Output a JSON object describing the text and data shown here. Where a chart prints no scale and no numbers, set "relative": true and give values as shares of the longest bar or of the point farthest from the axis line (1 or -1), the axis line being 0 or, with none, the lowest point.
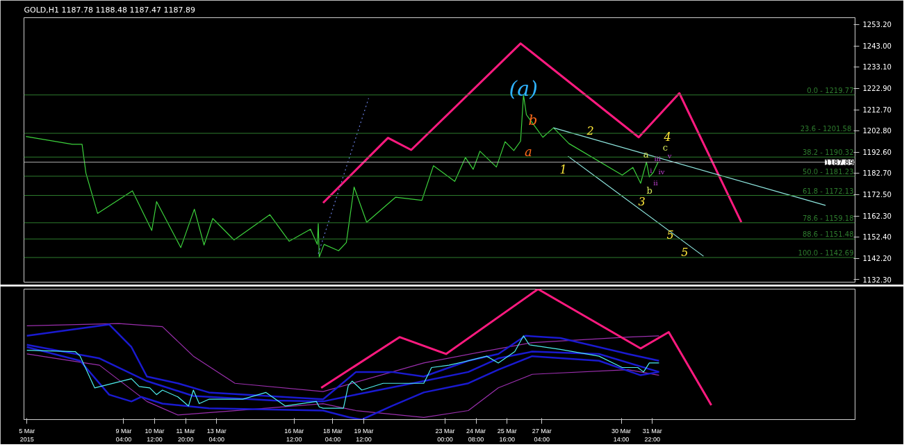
{
  "chart_data": [
    {
      "type": "line",
      "title": "GOLD,H1  1187.78 1188.48 1187.47 1187.89",
      "xlim": [
        "2015-03-04T21:00",
        "2015-04-09T15:30"
      ],
      "ylim": [
        1131.0,
        1256.4
      ],
      "yticks": [
        {
          "value": 1253.2,
          "label": "1253.20"
        },
        {
          "value": 1243.0,
          "label": "1243.00"
        },
        {
          "value": 1233.1,
          "label": "1233.10"
        },
        {
          "value": 1222.9,
          "label": "1222.90"
        },
        {
          "value": 1212.7,
          "label": "1212.70"
        },
        {
          "value": 1202.8,
          "label": "1202.80"
        },
        {
          "value": 1192.6,
          "label": "1192.60"
        },
        {
          "value": 1182.7,
          "label": "1182.70"
        },
        {
          "value": 1172.5,
          "label": "1172.50"
        },
        {
          "value": 1162.3,
          "label": "1162.30"
        },
        {
          "value": 1152.4,
          "label": "1152.40"
        },
        {
          "value": 1142.2,
          "label": "1142.20"
        },
        {
          "value": 1132.3,
          "label": "1132.30"
        }
      ],
      "tick_labels": "y",
      "grid": false,
      "series": [
        {
          "color": "#3cd23c",
          "x": [
            "2015-03-04T23:00",
            "2015-03-06T23:00",
            "2015-03-07T09:00",
            "2015-03-07T13:00",
            "2015-03-08T01:00",
            "2015-03-09T13:00",
            "2015-03-10T09:00",
            "2015-03-10T14:00",
            "2015-03-11T15:00",
            "2015-03-12T05:00",
            "2015-03-12T15:00",
            "2015-03-13T00:00",
            "2015-03-13T22:00",
            "2015-03-15T11:00",
            "2015-03-16T07:00",
            "2015-03-17T05:00",
            "2015-03-17T12:00",
            "2015-03-17T13:00",
            "2015-03-17T14:00",
            "2015-03-17T19:00",
            "2015-03-18T10:00",
            "2015-03-18T18:00",
            "2015-03-19T02:00",
            "2015-03-19T15:00",
            "2015-03-20T21:00",
            "2015-03-22T00:00",
            "2015-03-22T12:00",
            "2015-03-23T10:00",
            "2015-03-23T21:00",
            "2015-03-24T05:00",
            "2015-03-24T12:00",
            "2015-03-25T05:00",
            "2015-03-25T14:00",
            "2015-03-25T23:00",
            "2015-03-26T06:00",
            "2015-03-26T09:00",
            "2015-03-26T12:00",
            "2015-03-27T05:00",
            "2015-03-27T16:00",
            "2015-03-28T08:00",
            "2015-03-30T15:00",
            "2015-03-31T02:00",
            "2015-03-31T10:00",
            "2015-03-31T16:00",
            "2015-03-31T19:00",
            "2015-03-31T23:00",
            "2015-04-01T04:00"
          ],
          "values": [
            1200.1,
            1196.4,
            1196.4,
            1182.7,
            1163.6,
            1174.3,
            1155.5,
            1169.2,
            1147.4,
            1165.6,
            1148.6,
            1161.2,
            1151.0,
            1163.0,
            1150.4,
            1156.1,
            1148.9,
            1158.8,
            1142.9,
            1148.9,
            1145.9,
            1149.8,
            1176.1,
            1159.4,
            1171.3,
            1169.8,
            1186.2,
            1178.8,
            1190.1,
            1184.5,
            1193.1,
            1185.6,
            1197.6,
            1193.4,
            1197.9,
            1219.8,
            1210.4,
            1199.7,
            1204.2,
            1196.7,
            1181.8,
            1185.4,
            1177.9,
            1188.0,
            1180.9,
            1183.0,
            1187.9
          ]
        },
        {
          "color": "#ff1a7f",
          "x": [
            "2015-03-17T18:00",
            "2015-03-20T13:00",
            "2015-03-21T13:00",
            "2015-03-26T06:00",
            "2015-03-31T08:00",
            "2015-04-02T02:00",
            "2015-04-04T18:00"
          ],
          "values": [
            1168.6,
            1199.4,
            1193.7,
            1244.2,
            1199.7,
            1220.6,
            1159.4
          ]
        },
        {
          "color": "#8fe8e0",
          "x": [
            "2015-03-27T16:00",
            "2015-04-08T09:00"
          ],
          "values": [
            1204.2,
            1167.4
          ]
        },
        {
          "color": "#8fe8e0",
          "x": [
            "2015-03-28T07:00",
            "2015-04-03T03:00"
          ],
          "values": [
            1190.7,
            1143.3
          ]
        },
        {
          "color": "#6a7fe0",
          "line_style": "dotted",
          "x": [
            "2015-03-17T13:00",
            "2015-03-19T17:00"
          ],
          "values": [
            1144.5,
            1218.2
          ]
        }
      ],
      "ref_lines": [
        {
          "axis": "y",
          "value": 1219.77,
          "color": "#2e7d2e"
        },
        {
          "axis": "y",
          "value": 1201.58,
          "color": "#2e7d2e"
        },
        {
          "axis": "y",
          "value": 1190.32,
          "color": "#2e7d2e"
        },
        {
          "axis": "y",
          "value": 1181.23,
          "color": "#2e7d2e"
        },
        {
          "axis": "y",
          "value": 1172.13,
          "color": "#2e7d2e"
        },
        {
          "axis": "y",
          "value": 1159.18,
          "color": "#2e7d2e"
        },
        {
          "axis": "y",
          "value": 1151.48,
          "color": "#2e7d2e"
        },
        {
          "axis": "y",
          "value": 1142.69,
          "color": "#2e7d2e"
        },
        {
          "axis": "y",
          "value": 1187.89,
          "label": "1187.89",
          "color": "#b0b0b0"
        }
      ],
      "annotations": [
        "(a)",
        "a",
        "b",
        "1",
        "2",
        "3",
        "4",
        "5",
        "5",
        "a",
        "b",
        "c",
        "i",
        "ii",
        "iii",
        "iv",
        "v",
        {
          "text": "0.0 - 1219.77",
          "x": "2015-04-09T15:30",
          "y": 1219.77
        },
        {
          "text": "23.6  - 1201.58",
          "x": "2015-04-09T15:30",
          "y": 1201.58
        },
        {
          "text": "38.2 - 1190.32",
          "x": "2015-04-09T15:30",
          "y": 1190.32
        },
        {
          "text": "50.0 - 1181.23",
          "x": "2015-04-09T15:30",
          "y": 1181.23
        },
        {
          "text": "61.8 - 1172.13",
          "x": "2015-04-09T15:30",
          "y": 1172.13
        },
        {
          "text": "78.6 - 1159.18",
          "x": "2015-04-09T15:30",
          "y": 1159.18
        },
        {
          "text": "88.6 - 1151.48",
          "x": "2015-04-09T15:30",
          "y": 1151.48
        },
        {
          "text": "100.0 - 1142.69",
          "x": "2015-04-09T15:30",
          "y": 1142.69
        }
      ]
    },
    {
      "type": "line",
      "relative": true,
      "xlim": [
        "2015-03-04T21:00",
        "2015-04-09T15:30"
      ],
      "tick_labels": "x",
      "grid": false,
      "xticks": [
        {
          "value": "2015-03-05T00:00",
          "label": "5 Mar 2015"
        },
        {
          "value": "2015-03-09T04:00",
          "label": "9 Mar 04:00"
        },
        {
          "value": "2015-03-10T12:00",
          "label": "10 Mar 12:00"
        },
        {
          "value": "2015-03-11T20:00",
          "label": "11 Mar 20:00"
        },
        {
          "value": "2015-03-13T04:00",
          "label": "13 Mar 04:00"
        },
        {
          "value": "2015-03-16T12:00",
          "label": "16 Mar 12:00"
        },
        {
          "value": "2015-03-18T04:00",
          "label": "18 Mar 04:00"
        },
        {
          "value": "2015-03-19T12:00",
          "label": "19 Mar 12:00"
        },
        {
          "value": "2015-03-23T00:00",
          "label": "23 Mar 00:00"
        },
        {
          "value": "2015-03-24T08:00",
          "label": "24 Mar 08:00"
        },
        {
          "value": "2015-03-25T16:00",
          "label": "25 Mar 16:00"
        },
        {
          "value": "2015-03-27T04:00",
          "label": "27 Mar 04:00"
        },
        {
          "value": "2015-03-30T14:00",
          "label": "30 Mar 14:00"
        },
        {
          "value": "2015-03-31T22:00",
          "label": "31 Mar 22:00"
        }
      ],
      "series": [
        {
          "color": "#9b2fae",
          "x": [
            "2015-03-05T00:00",
            "2015-03-08T23:00",
            "2015-03-10T20:00",
            "2015-03-12T04:00",
            "2015-03-13T23:00",
            "2015-03-17T18:00",
            "2015-03-22T02:00",
            "2015-03-24T15:00",
            "2015-03-26T18:00",
            "2015-03-30T21:00",
            "2015-04-01T05:00"
          ],
          "values": [
            0.719,
            0.736,
            0.712,
            0.486,
            0.278,
            0.215,
            0.434,
            0.521,
            0.59,
            0.632,
            0.642
          ]
        },
        {
          "color": "#9b2fae",
          "x": [
            "2015-03-05T00:00",
            "2015-03-08T03:00",
            "2015-03-10T04:00",
            "2015-03-11T12:00",
            "2015-03-13T23:00",
            "2015-03-17T18:00",
            "2015-03-19T04:00",
            "2015-03-22T02:00",
            "2015-03-24T00:00",
            "2015-03-25T07:00",
            "2015-03-26T18:00",
            "2015-03-30T21:00",
            "2015-04-01T05:00"
          ],
          "values": [
            0.503,
            0.417,
            0.139,
            0.035,
            0.069,
            0.122,
            0.069,
            0.017,
            0.069,
            0.243,
            0.347,
            0.382,
            0.34
          ]
        },
        {
          "color": "#1a1ad0",
          "x": [
            "2015-03-05T00:00",
            "2015-03-08T03:00",
            "2015-03-10T04:00",
            "2015-03-12T04:00",
            "2015-03-15T15:00",
            "2015-03-17T18:00",
            "2015-03-19T04:00",
            "2015-03-22T02:00",
            "2015-03-24T00:00",
            "2015-03-25T07:00",
            "2015-03-26T18:00",
            "2015-03-29T15:00",
            "2015-04-01T05:00"
          ],
          "values": [
            0.573,
            0.469,
            0.295,
            0.181,
            0.146,
            0.139,
            0.191,
            0.295,
            0.365,
            0.469,
            0.521,
            0.503,
            0.365
          ]
        },
        {
          "color": "#1a1ad0",
          "x": [
            "2015-03-05T00:00",
            "2015-03-08T13:00",
            "2015-03-09T12:00",
            "2015-03-10T04:00",
            "2015-03-11T12:00",
            "2015-03-12T20:00",
            "2015-03-17T18:00",
            "2015-03-19T04:00",
            "2015-03-20T17:00",
            "2015-03-22T02:00",
            "2015-03-24T00:00",
            "2015-03-25T07:00",
            "2015-03-26T11:00",
            "2015-03-27T23:00",
            "2015-03-30T21:00",
            "2015-04-01T05:00"
          ],
          "values": [
            0.642,
            0.729,
            0.556,
            0.33,
            0.278,
            0.208,
            0.156,
            0.365,
            0.365,
            0.33,
            0.451,
            0.503,
            0.642,
            0.625,
            0.503,
            0.451
          ]
        },
        {
          "color": "#1a1ad0",
          "x": [
            "2015-03-05T00:00",
            "2015-03-07T07:00",
            "2015-03-08T13:00",
            "2015-03-09T12:00",
            "2015-03-09T22:00",
            "2015-03-10T20:00",
            "2015-03-12T20:00",
            "2015-03-17T18:00",
            "2015-03-18T21:00",
            "2015-03-19T10:00",
            "2015-03-20T17:00",
            "2015-03-22T02:00",
            "2015-03-24T00:00",
            "2015-03-25T07:00",
            "2015-03-26T18:00",
            "2015-03-29T15:00",
            "2015-03-31T10:00",
            "2015-04-01T05:00"
          ],
          "values": [
            0.556,
            0.451,
            0.191,
            0.139,
            0.174,
            0.122,
            0.087,
            0.069,
            0.017,
            0.0,
            0.104,
            0.208,
            0.278,
            0.382,
            0.486,
            0.451,
            0.34,
            0.365
          ]
        },
        {
          "color": "#4ff0f0",
          "x": [
            "2015-03-05T00:00",
            "2015-03-07T02:00",
            "2015-03-07T07:00",
            "2015-03-07T22:00",
            "2015-03-08T13:00",
            "2015-03-09T12:00",
            "2015-03-09T20:00",
            "2015-03-10T07:00",
            "2015-03-10T14:00",
            "2015-03-10T20:00",
            "2015-03-11T12:00",
            "2015-03-11T23:00",
            "2015-03-12T04:00",
            "2015-03-12T10:00",
            "2015-03-12T20:00",
            "2015-03-14T07:00",
            "2015-03-15T07:00",
            "2015-03-16T03:00",
            "2015-03-17T11:00",
            "2015-03-17T14:00",
            "2015-03-17T18:00",
            "2015-03-18T15:00",
            "2015-03-18T20:00",
            "2015-03-19T00:00",
            "2015-03-19T10:00",
            "2015-03-20T08:00",
            "2015-03-22T02:00",
            "2015-03-22T10:00",
            "2015-03-23T04:00",
            "2015-03-24T00:00",
            "2015-03-24T19:00",
            "2015-03-25T07:00",
            "2015-03-26T00:00",
            "2015-03-26T09:00",
            "2015-03-26T15:00",
            "2015-03-27T23:00",
            "2015-03-29T15:00",
            "2015-03-30T15:00",
            "2015-03-31T07:00",
            "2015-03-31T13:00",
            "2015-03-31T19:00",
            "2015-04-01T05:00"
          ],
          "values": [
            0.531,
            0.521,
            0.486,
            0.243,
            0.271,
            0.313,
            0.253,
            0.243,
            0.191,
            0.226,
            0.174,
            0.104,
            0.226,
            0.122,
            0.156,
            0.156,
            0.208,
            0.104,
            0.139,
            0.097,
            0.087,
            0.087,
            0.26,
            0.295,
            0.226,
            0.278,
            0.278,
            0.399,
            0.417,
            0.451,
            0.486,
            0.434,
            0.521,
            0.642,
            0.573,
            0.538,
            0.486,
            0.399,
            0.399,
            0.365,
            0.434,
            0.434
          ]
        },
        {
          "color": "#ff1a7f",
          "x": [
            "2015-03-17T16:00",
            "2015-03-21T01:00",
            "2015-03-23T01:00",
            "2015-03-27T00:00",
            "2015-03-31T10:00",
            "2015-04-01T15:00",
            "2015-04-03T11:00"
          ],
          "values": [
            0.243,
            0.632,
            0.503,
            1.0,
            0.545,
            0.67,
            0.111
          ]
        }
      ]
    }
  ]
}
